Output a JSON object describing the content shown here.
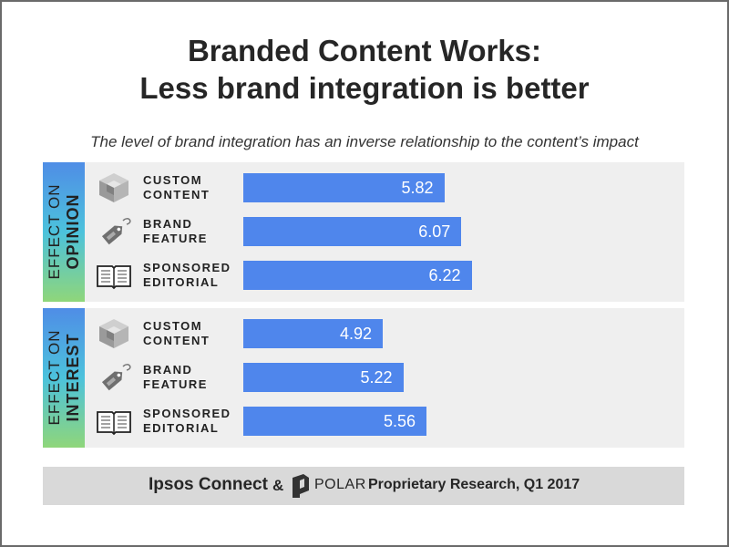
{
  "title_line1": "Branded Content Works:",
  "title_line2": "Less brand integration is better",
  "subtitle": "The level of brand integration has an inverse relationship to the content’s impact",
  "footer": {
    "ipsos": "Ipsos Connect",
    "amp": "&",
    "polar": "POLAR",
    "research": "Proprietary Research, Q1 2017"
  },
  "icons": [
    "cube-icon",
    "price-tag-icon",
    "open-book-icon"
  ],
  "colors": {
    "bar": "#4f86ec",
    "panel": "#efefef",
    "footer": "#d9d9d9"
  },
  "chart_data": [
    {
      "type": "bar",
      "panel_label_line1": "EFFECT ON",
      "panel_label_line2": "OPINION",
      "categories": [
        [
          "CUSTOM",
          "CONTENT"
        ],
        [
          "BRAND",
          "FEATURE"
        ],
        [
          "SPONSORED",
          "EDITORIAL"
        ]
      ],
      "values": [
        5.82,
        6.07,
        6.22
      ],
      "value_labels": [
        "5.82",
        "6.07",
        "6.22"
      ]
    },
    {
      "type": "bar",
      "panel_label_line1": "EFFECT ON",
      "panel_label_line2": "INTEREST",
      "categories": [
        [
          "CUSTOM",
          "CONTENT"
        ],
        [
          "BRAND",
          "FEATURE"
        ],
        [
          "SPONSORED",
          "EDITORIAL"
        ]
      ],
      "values": [
        4.92,
        5.22,
        5.56
      ],
      "value_labels": [
        "4.92",
        "5.22",
        "5.56"
      ]
    }
  ]
}
